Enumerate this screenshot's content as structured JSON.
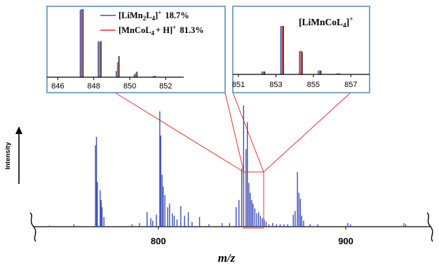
{
  "chart_data": [
    {
      "type": "bar",
      "role": "main-spectrum",
      "xlabel": "m/z",
      "ylabel": "Intensity",
      "xlim": [
        738,
        940
      ],
      "ylim": [
        0,
        100
      ],
      "x_ticks": [
        800,
        900
      ],
      "x_tick_labels": [
        "800",
        "900"
      ],
      "series": [
        {
          "color": "#3b4fb8",
          "x": [
            742,
            755,
            766.5,
            767.0,
            767.5,
            769.0,
            769.5,
            770.0,
            771.0,
            786,
            790,
            794.0,
            796.0,
            797.0,
            799.0,
            800.8,
            801.3,
            802.0,
            802.6,
            803.5,
            805.0,
            806.0,
            807.5,
            808.5,
            810.0,
            812.0,
            814.0,
            816.0,
            818.0,
            822.0,
            827.0,
            834.0,
            838.0,
            841.5,
            843.0,
            844.5,
            845.5,
            846.8,
            847.5,
            848.3,
            849.0,
            849.8,
            850.5,
            851.5,
            852.5,
            853.5,
            854.5,
            855.5,
            856.5,
            857.5,
            859.0,
            861.0,
            863.0,
            865.0,
            867.0,
            869.0,
            872.0,
            873.0,
            874.2,
            875.0,
            875.8,
            876.5,
            877.5,
            881.0,
            885.0,
            901.0,
            902.5,
            931.0,
            932.0
          ],
          "values": [
            1,
            2,
            67,
            74,
            37,
            30,
            22,
            16,
            8,
            2,
            3,
            12,
            7,
            5,
            10,
            95,
            75,
            43,
            33,
            26,
            16,
            19,
            11,
            9,
            6,
            17,
            9,
            12,
            4,
            8,
            2,
            3,
            3,
            16,
            22,
            48,
            100,
            64,
            86,
            36,
            28,
            22,
            19,
            15,
            11,
            12,
            9,
            7,
            6,
            4,
            2,
            3,
            2,
            2,
            2,
            2,
            10,
            13,
            45,
            28,
            23,
            9,
            5,
            2,
            2,
            3,
            2,
            3,
            2
          ]
        }
      ]
    },
    {
      "type": "bar",
      "role": "inset-left",
      "xlim": [
        845.4,
        853.0
      ],
      "ylim": [
        0,
        100
      ],
      "x_ticks": [
        846,
        848,
        850,
        852
      ],
      "x_tick_labels": [
        "846",
        "848",
        "850",
        "852"
      ],
      "series": [
        {
          "name": "[LiMn2L4]+ 18.7%",
          "color": "#3b4fb8",
          "x": [
            847.25,
            848.25,
            849.25,
            850.25,
            851.25
          ],
          "values": [
            99,
            53,
            9,
            4,
            1
          ]
        },
        {
          "name": "[MnCoL4 + H]+ 81.3%",
          "color": "#e53030",
          "x": [
            847.32,
            848.32,
            849.32,
            850.32,
            851.32
          ],
          "values": [
            100,
            52,
            22,
            6,
            1.5
          ]
        },
        {
          "name": "",
          "color": "#111111",
          "x": [
            847.4,
            848.4,
            849.4,
            850.4,
            851.4
          ],
          "values": [
            100,
            53,
            31,
            8,
            2
          ]
        }
      ]
    },
    {
      "type": "bar",
      "role": "inset-right",
      "title": "[LiMnCoL4]+",
      "xlim": [
        850.7,
        858.0
      ],
      "ylim": [
        0,
        100
      ],
      "x_ticks": [
        851,
        853,
        855,
        857
      ],
      "x_tick_labels": [
        "851",
        "853",
        "855",
        "857"
      ],
      "series": [
        {
          "color": "#3b4fb8",
          "x": [
            852.26,
            853.26,
            854.26,
            855.26,
            856.26
          ],
          "values": [
            6,
            100,
            48,
            8,
            2
          ]
        },
        {
          "color": "#e53030",
          "x": [
            852.33,
            853.33,
            854.33,
            855.33,
            856.33
          ],
          "values": [
            6,
            100,
            49,
            8,
            2
          ]
        },
        {
          "color": "#111111",
          "x": [
            852.4,
            853.4,
            854.4,
            855.4,
            856.4
          ],
          "values": [
            6,
            100,
            47,
            8,
            2
          ]
        }
      ]
    }
  ],
  "legend": {
    "item1": {
      "prefix": "[LiMn",
      "sub1": "2",
      "mid": "L",
      "sub2": "4",
      "suffix": "]",
      "sup": "+",
      "value": "18.7%"
    },
    "item2": {
      "prefix": "[MnCoL",
      "sub1": "4",
      "mid": "+ H]",
      "sup": "+",
      "value": "81.3%"
    }
  },
  "right_inset_title": {
    "prefix": "[LiMnCoL",
    "sub": "4",
    "suffix": "]",
    "sup": "+"
  },
  "axis": {
    "xlabel": "m/z",
    "ylabel": "Intensity"
  },
  "colors": {
    "inset_border": "#5b8fb8",
    "zoom_lines": "#e53030",
    "highlight_box": "#e53030"
  }
}
